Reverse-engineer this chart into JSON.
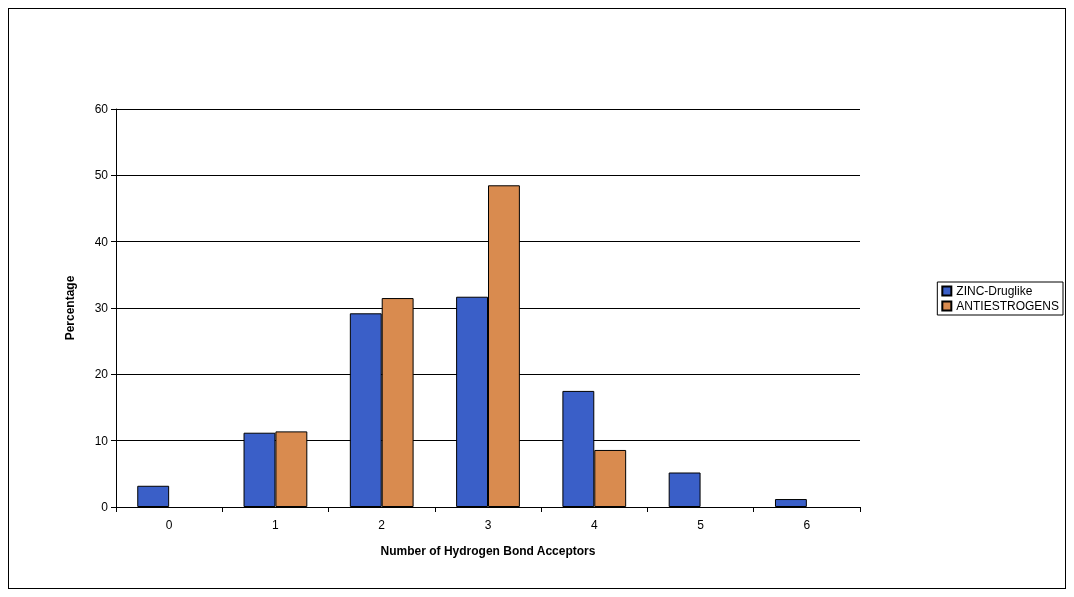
{
  "chart_data": {
    "type": "bar",
    "xlabel": "Number of Hydrogen Bond Acceptors",
    "ylabel": "Percentage",
    "categories": [
      "0",
      "1",
      "2",
      "3",
      "4",
      "5",
      "6"
    ],
    "series": [
      {
        "name": "ZINC-Druglike",
        "color": "#3a5fc8",
        "values": [
          3.2,
          11.2,
          29.2,
          31.7,
          17.5,
          5.2,
          1.2
        ]
      },
      {
        "name": "ANTIESTROGENS",
        "color": "#d98b4f",
        "values": [
          null,
          11.4,
          31.5,
          48.5,
          8.6,
          null,
          null
        ]
      }
    ],
    "ylim": [
      0,
      60
    ],
    "yticks": [
      0,
      10,
      20,
      30,
      40,
      50,
      60
    ],
    "grid": "y",
    "legend": "right"
  }
}
